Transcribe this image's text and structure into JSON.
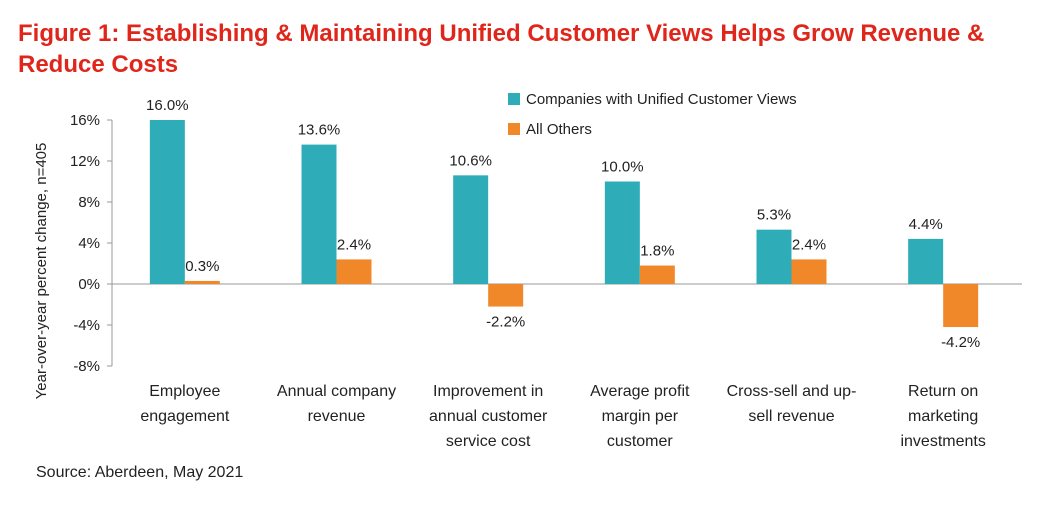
{
  "title": "Figure 1: Establishing & Maintaining Unified Customer Views Helps Grow Revenue & Reduce Costs",
  "source": "Source: Aberdeen, May 2021",
  "colors": {
    "series1": "#2eadb8",
    "series2": "#f0882a"
  },
  "chart_data": {
    "type": "bar",
    "ylabel": "Year-over-year percent change, n=405",
    "ylim": [
      -8,
      16
    ],
    "yticks": [
      "16%",
      "12%",
      "8%",
      "4%",
      "0%",
      "-4%",
      "-8%"
    ],
    "categories": [
      [
        "Employee",
        "engagement"
      ],
      [
        "Annual company",
        "revenue"
      ],
      [
        "Improvement in",
        "annual customer",
        "service cost"
      ],
      [
        "Average profit",
        "margin per",
        "customer"
      ],
      [
        "Cross-sell and up-",
        "sell revenue"
      ],
      [
        "Return on",
        "marketing",
        "investments"
      ]
    ],
    "series": [
      {
        "name": "Companies with Unified Customer Views",
        "values": [
          16.0,
          13.6,
          10.6,
          10.0,
          5.3,
          4.4
        ],
        "labels": [
          "16.0%",
          "13.6%",
          "10.6%",
          "10.0%",
          "5.3%",
          "4.4%"
        ]
      },
      {
        "name": "All Others",
        "values": [
          0.3,
          2.4,
          -2.2,
          1.8,
          2.4,
          -4.2
        ],
        "labels": [
          "0.3%",
          "2.4%",
          "-2.2%",
          "1.8%",
          "2.4%",
          "-4.2%"
        ]
      }
    ],
    "legend": "top-right",
    "grid": false
  }
}
